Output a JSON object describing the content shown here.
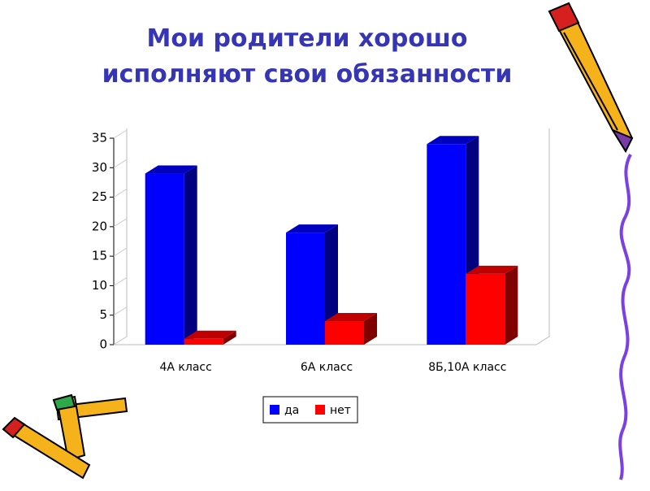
{
  "chart_data": {
    "type": "bar3d",
    "title": "Мои родители хорошо исполняют свои обязанности",
    "categories": [
      "4А класс",
      "6А класс",
      "8Б,10А класс"
    ],
    "series": [
      {
        "name": "да",
        "color": "#0000ff",
        "values": [
          29,
          19,
          34
        ]
      },
      {
        "name": "нет",
        "color": "#ff0000",
        "values": [
          1,
          4,
          12
        ]
      }
    ],
    "ylim": [
      0,
      35
    ],
    "yticks": [
      0,
      5,
      10,
      15,
      20,
      25,
      30,
      35
    ],
    "legend": "bottom"
  }
}
